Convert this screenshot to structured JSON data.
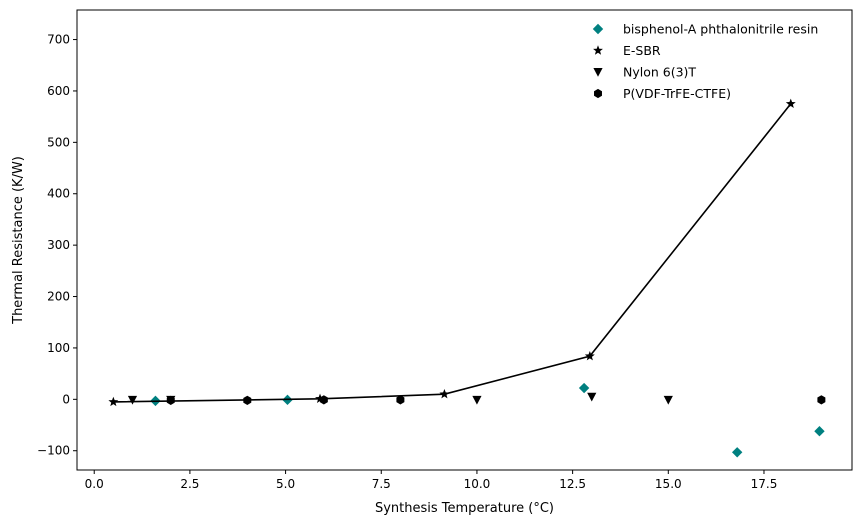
{
  "chart_data": {
    "type": "scatter",
    "xlabel": "Synthesis Temperature (°C)",
    "ylabel": "Thermal Resistance (K/W)",
    "xlim": [
      -0.45,
      19.8
    ],
    "ylim": [
      -137.5,
      757.5
    ],
    "xticks": [
      0.0,
      2.5,
      5.0,
      7.5,
      10.0,
      12.5,
      15.0,
      17.5
    ],
    "xtick_labels": [
      "0.0",
      "2.5",
      "5.0",
      "7.5",
      "10.0",
      "12.5",
      "15.0",
      "17.5"
    ],
    "yticks": [
      -100,
      0,
      100,
      200,
      300,
      400,
      500,
      600,
      700
    ],
    "ytick_labels": [
      "−100",
      "0",
      "100",
      "200",
      "300",
      "400",
      "500",
      "600",
      "700"
    ],
    "grid": false,
    "legend_position": "top-right",
    "series": [
      {
        "name": "bisphenol-A phthalonitrile resin",
        "marker": "diamond",
        "color": "#008080",
        "line": false,
        "x": [
          1.6,
          5.05,
          12.8,
          16.8,
          18.95
        ],
        "y": [
          -3,
          -1,
          22,
          -103,
          -62
        ]
      },
      {
        "name": "E-SBR",
        "marker": "star",
        "color": "#000000",
        "line": true,
        "x": [
          0.5,
          5.9,
          9.15,
          12.95,
          18.2
        ],
        "y": [
          -5,
          1,
          10,
          84,
          575
        ]
      },
      {
        "name": "Nylon 6(3)T",
        "marker": "triangle-down",
        "color": "#000000",
        "line": false,
        "x": [
          1.0,
          2.0,
          10.0,
          13.0,
          15.0
        ],
        "y": [
          -1,
          -1,
          -1,
          5,
          -1
        ]
      },
      {
        "name": "P(VDF-TrFE-CTFE)",
        "marker": "hexagon",
        "color": "#000000",
        "line": false,
        "x": [
          2.0,
          4.0,
          6.0,
          8.0,
          19.0
        ],
        "y": [
          -2,
          -2,
          -1,
          -1,
          -1
        ]
      }
    ]
  }
}
